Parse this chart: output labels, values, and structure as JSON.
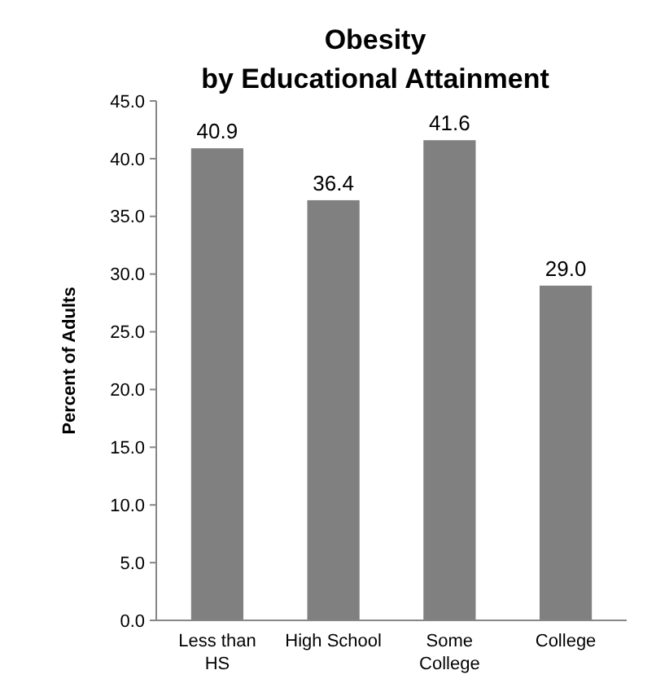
{
  "chart_data": {
    "type": "bar",
    "title": "Obesity\nby Educational Attainment",
    "ylabel": "Percent of Adults",
    "categories": [
      "Less than HS",
      "High School",
      "Some College",
      "College"
    ],
    "values": [
      40.9,
      36.4,
      41.6,
      29.0
    ],
    "value_labels": [
      "40.9",
      "36.4",
      "41.6",
      "29.0"
    ],
    "color": "#808080",
    "ylim": [
      0,
      45
    ],
    "yticks": [
      {
        "value": 0,
        "label": "0.0"
      },
      {
        "value": 5,
        "label": "5.0"
      },
      {
        "value": 10,
        "label": "10.0"
      },
      {
        "value": 15,
        "label": "15.0"
      },
      {
        "value": 20,
        "label": "20.0"
      },
      {
        "value": 25,
        "label": "25.0"
      },
      {
        "value": 30,
        "label": "30.0"
      },
      {
        "value": 35,
        "label": "35.0"
      },
      {
        "value": 40,
        "label": "40.0"
      },
      {
        "value": 45,
        "label": "45.0"
      }
    ]
  }
}
